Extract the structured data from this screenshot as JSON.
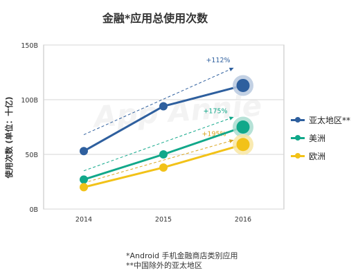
{
  "chart_data": {
    "type": "line",
    "title": "金融*应用总使用次数",
    "ylabel": "使用次数 (单位：十亿)",
    "xlabel": "",
    "x": [
      "2014",
      "2015",
      "2016"
    ],
    "ylim": [
      0,
      150
    ],
    "yticks": [
      0,
      50,
      100,
      150
    ],
    "ytick_labels": [
      "0B",
      "50B",
      "100B",
      "150B"
    ],
    "grid": true,
    "legend_position": "right",
    "series": [
      {
        "name": "亚太地区**",
        "values": [
          53,
          94,
          113
        ],
        "color": "#2e5f9e",
        "halo_color": "#b9c9df"
      },
      {
        "name": "美洲",
        "values": [
          27,
          50,
          75
        ],
        "color": "#11a88a",
        "halo_color": "#a9ddd0"
      },
      {
        "name": "欧洲",
        "values": [
          20,
          38,
          59
        ],
        "color": "#f2c218",
        "halo_color": "#f8e6a3"
      }
    ],
    "annotations": [
      {
        "text": "+112%",
        "series": "亚太地区**",
        "color": "#2e5f9e",
        "trend_from": [
          2014,
          68
        ],
        "trend_to": [
          2016,
          129
        ]
      },
      {
        "text": "+175%",
        "series": "美洲",
        "color": "#11a88a",
        "trend_from": [
          2014,
          35
        ],
        "trend_to": [
          2016,
          84
        ]
      },
      {
        "text": "+195%",
        "series": "欧洲",
        "color": "#d9a520",
        "trend_from": [
          2014,
          24
        ],
        "trend_to": [
          2016,
          63
        ]
      }
    ],
    "watermark": "App Annie",
    "footnotes": [
      "*Android 手机金融商店类别应用",
      "**中国除外的亚太地区"
    ]
  }
}
